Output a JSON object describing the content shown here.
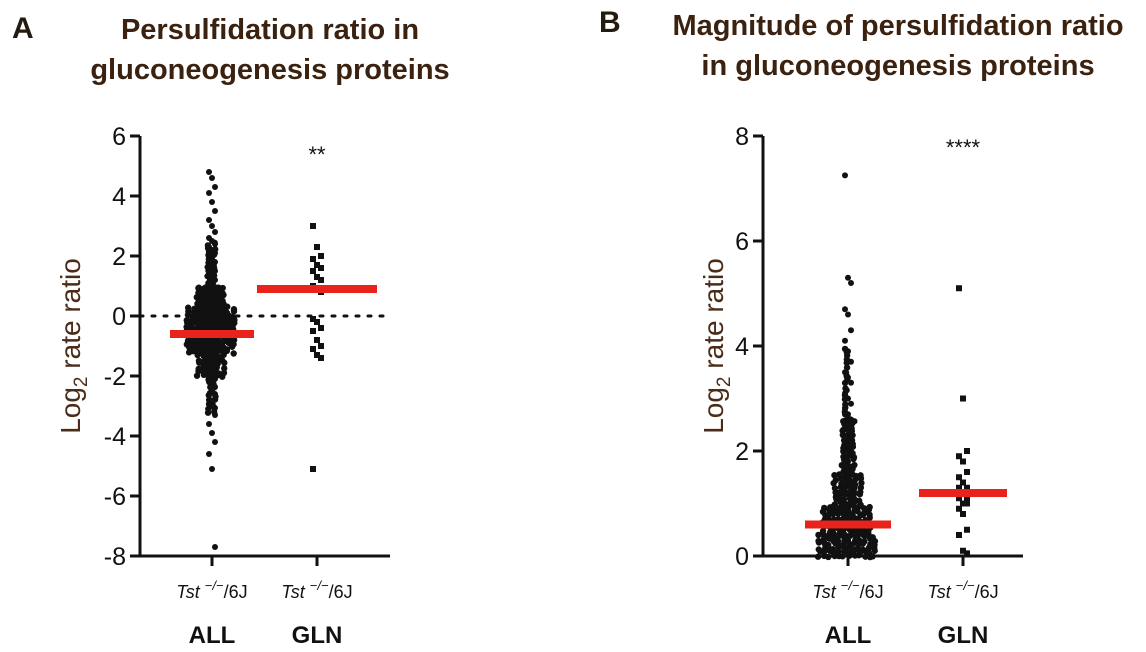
{
  "panels": [
    {
      "letter": "A",
      "title_line1": "Persulfidation ratio in",
      "title_line2": "gluconeogenesis proteins"
    },
    {
      "letter": "B",
      "title_line1": "Magnitude of persulfidation ratio",
      "title_line2": "in gluconeogenesis proteins"
    }
  ],
  "chart_data": [
    {
      "type": "scatter",
      "subtype": "beeswarm",
      "title": "Persulfidation ratio in gluconeogenesis proteins",
      "ylabel_main": "Log",
      "ylabel_sub": "2",
      "ylabel_rest": " rate ratio",
      "ylim": [
        -8,
        6
      ],
      "yticks": [
        "6",
        "4",
        "2",
        "0",
        "-2",
        "-4",
        "-6",
        "-8"
      ],
      "reference_line": 0,
      "categories": [
        {
          "genotype": "Tst",
          "superscript": "−/−",
          "suffix": "/6J",
          "group": "ALL",
          "mean": -0.6,
          "significance": "",
          "values": [
            4.8,
            4.6,
            4.3,
            4.1,
            3.8,
            3.5,
            3.2,
            3.0,
            2.8,
            2.6,
            2.5,
            2.4,
            2.3,
            2.2,
            2.1,
            2.0,
            1.9,
            1.8,
            1.7,
            1.6,
            1.5,
            1.4,
            1.3,
            1.2,
            1.1,
            1.0,
            0.9,
            0.8,
            0.7,
            0.6,
            0.5,
            0.4,
            0.3,
            0.2,
            0.1,
            0.0,
            -0.1,
            -0.2,
            -0.3,
            -0.4,
            -0.5,
            -0.6,
            -0.7,
            -0.8,
            -0.9,
            -1.0,
            -1.1,
            -1.2,
            -1.3,
            -1.4,
            -1.5,
            -1.6,
            -1.7,
            -1.8,
            -1.9,
            -2.0,
            -2.1,
            -2.2,
            -2.4,
            -2.6,
            -2.8,
            -3.0,
            -3.3,
            -3.6,
            -3.9,
            -4.2,
            -4.6,
            -5.1,
            -7.7
          ]
        },
        {
          "genotype": "Tst",
          "superscript": "−/−",
          "suffix": "/6J",
          "group": "GLN",
          "mean": 0.9,
          "significance": "**",
          "values": [
            3.0,
            2.3,
            2.0,
            1.9,
            1.7,
            1.6,
            1.5,
            1.3,
            1.2,
            1.0,
            0.9,
            0.8,
            -0.1,
            -0.2,
            -0.4,
            -0.5,
            -0.8,
            -1.0,
            -1.1,
            -1.3,
            -1.4,
            -5.1
          ]
        }
      ]
    },
    {
      "type": "scatter",
      "subtype": "beeswarm",
      "title": "Magnitude of persulfidation ratio in gluconeogenesis proteins",
      "ylabel_main": "Log",
      "ylabel_sub": "2",
      "ylabel_rest": " rate ratio",
      "ylim": [
        0,
        8
      ],
      "yticks": [
        "8",
        "6",
        "4",
        "2",
        "0"
      ],
      "categories": [
        {
          "genotype": "Tst",
          "superscript": "−/−",
          "suffix": "/6J",
          "group": "ALL",
          "mean": 0.6,
          "significance": "",
          "values": [
            7.25,
            5.3,
            5.2,
            4.7,
            4.6,
            4.3,
            4.1,
            3.9,
            3.7,
            3.5,
            3.4,
            3.3,
            3.1,
            3.0,
            2.9,
            2.8,
            2.7,
            2.6,
            2.5,
            2.4,
            2.3,
            2.2,
            2.1,
            2.0,
            1.9,
            1.8,
            1.7,
            1.6,
            1.5,
            1.4,
            1.3,
            1.2,
            1.1,
            1.0,
            0.9,
            0.8,
            0.7,
            0.6,
            0.5,
            0.4,
            0.3,
            0.2,
            0.1,
            0.05
          ]
        },
        {
          "genotype": "Tst",
          "superscript": "−/−",
          "suffix": "/6J",
          "group": "GLN",
          "mean": 1.2,
          "significance": "****",
          "values": [
            5.1,
            3.0,
            2.0,
            1.9,
            1.8,
            1.6,
            1.5,
            1.4,
            1.3,
            1.3,
            1.2,
            1.1,
            1.1,
            1.0,
            1.0,
            0.9,
            0.8,
            0.5,
            0.4,
            0.1,
            0.05
          ]
        }
      ]
    }
  ],
  "colors": {
    "mean_bar": "#e8231c",
    "points": "#111111",
    "axis": "#111111"
  }
}
